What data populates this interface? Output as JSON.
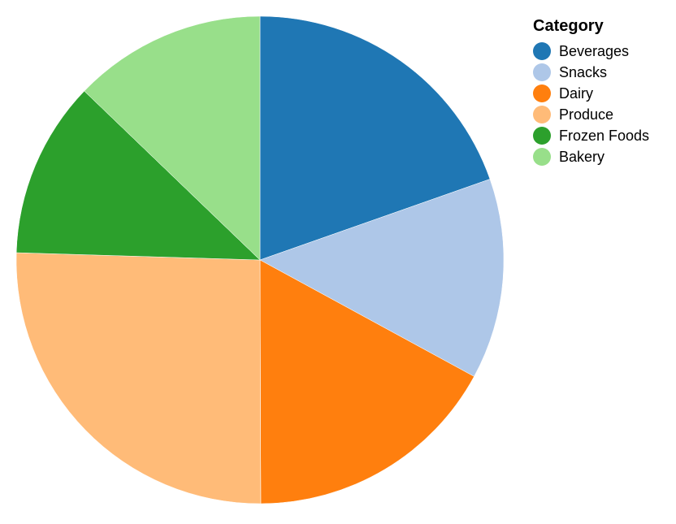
{
  "chart_data": {
    "type": "pie",
    "legend_title": "Category",
    "legend_position": "top-right",
    "categories": [
      "Beverages",
      "Snacks",
      "Dairy",
      "Produce",
      "Frozen Foods",
      "Bakery"
    ],
    "values": [
      19.6,
      13.3,
      17.0,
      25.5,
      11.7,
      12.8
    ],
    "colors": [
      "#1f77b4",
      "#aec7e8",
      "#ff7f0e",
      "#ffbb78",
      "#2ca02c",
      "#98df8a"
    ],
    "start_angle_deg": 0,
    "direction": "clockwise"
  }
}
